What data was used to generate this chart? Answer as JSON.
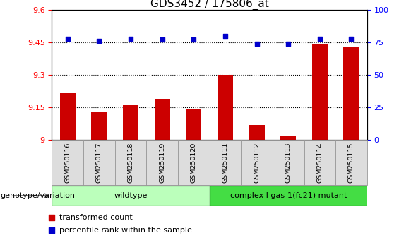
{
  "title": "GDS3452 / 175806_at",
  "categories": [
    "GSM250116",
    "GSM250117",
    "GSM250118",
    "GSM250119",
    "GSM250120",
    "GSM250111",
    "GSM250112",
    "GSM250113",
    "GSM250114",
    "GSM250115"
  ],
  "bar_values": [
    9.22,
    9.13,
    9.16,
    9.19,
    9.14,
    9.3,
    9.07,
    9.02,
    9.44,
    9.43
  ],
  "scatter_values": [
    78,
    76,
    78,
    77,
    77,
    80,
    74,
    74,
    78,
    78
  ],
  "ylim_left": [
    9.0,
    9.6
  ],
  "ylim_right": [
    0,
    100
  ],
  "yticks_left": [
    9.0,
    9.15,
    9.3,
    9.45,
    9.6
  ],
  "yticks_right": [
    0,
    25,
    50,
    75,
    100
  ],
  "hlines": [
    9.15,
    9.3,
    9.45
  ],
  "bar_color": "#cc0000",
  "scatter_color": "#0000cc",
  "bar_width": 0.5,
  "wildtype_count": 5,
  "mutant_count": 5,
  "wildtype_label": "wildtype",
  "mutant_label": "complex I gas-1(fc21) mutant",
  "wildtype_color": "#bbffbb",
  "mutant_color": "#44dd44",
  "genotype_label": "genotype/variation",
  "legend_bar_label": "transformed count",
  "legend_scatter_label": "percentile rank within the sample",
  "title_fontsize": 11,
  "tick_fontsize": 8,
  "label_fontsize": 7.5,
  "cell_bg_color": "#dddddd",
  "cell_edge_color": "#999999"
}
